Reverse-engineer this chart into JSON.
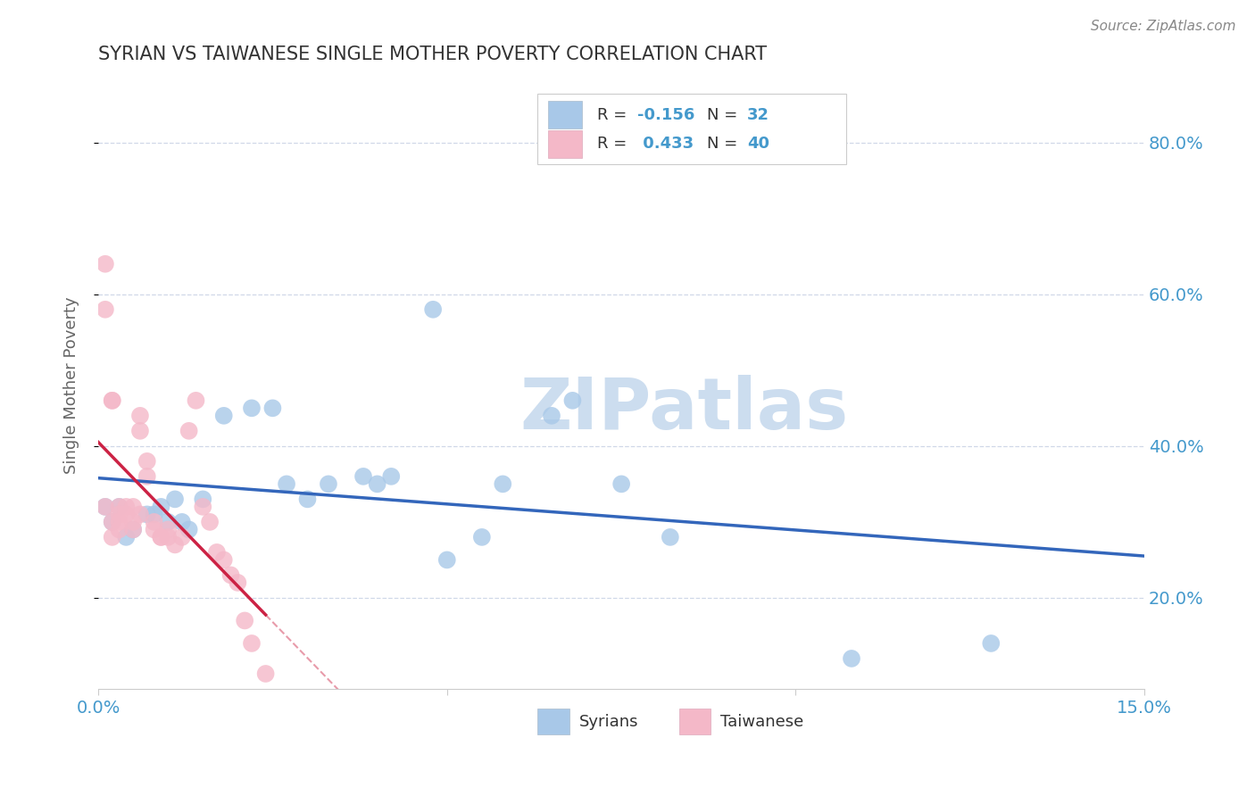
{
  "title": "SYRIAN VS TAIWANESE SINGLE MOTHER POVERTY CORRELATION CHART",
  "source_text": "Source: ZipAtlas.com",
  "ylabel": "Single Mother Poverty",
  "watermark": "ZIPatlas",
  "xlim": [
    0.0,
    0.15
  ],
  "ylim": [
    0.08,
    0.88
  ],
  "syrian_color": "#a8c8e8",
  "taiwanese_color": "#f4b8c8",
  "trend_syrian_color": "#3366bb",
  "trend_taiwanese_color": "#cc2244",
  "background_color": "#ffffff",
  "grid_color": "#d0d8e8",
  "title_color": "#333333",
  "axis_label_color": "#666666",
  "tick_label_color": "#4499cc",
  "syrians_x": [
    0.001,
    0.002,
    0.003,
    0.004,
    0.005,
    0.007,
    0.008,
    0.009,
    0.01,
    0.011,
    0.012,
    0.013,
    0.015,
    0.018,
    0.022,
    0.025,
    0.027,
    0.03,
    0.033,
    0.038,
    0.04,
    0.042,
    0.048,
    0.05,
    0.055,
    0.058,
    0.065,
    0.068,
    0.075,
    0.082,
    0.108,
    0.128
  ],
  "syrians_y": [
    0.32,
    0.3,
    0.32,
    0.28,
    0.29,
    0.31,
    0.31,
    0.32,
    0.3,
    0.33,
    0.3,
    0.29,
    0.33,
    0.44,
    0.45,
    0.45,
    0.35,
    0.33,
    0.35,
    0.36,
    0.35,
    0.36,
    0.58,
    0.25,
    0.28,
    0.35,
    0.44,
    0.46,
    0.35,
    0.28,
    0.12,
    0.14
  ],
  "taiwanese_x": [
    0.001,
    0.001,
    0.001,
    0.002,
    0.002,
    0.002,
    0.002,
    0.003,
    0.003,
    0.003,
    0.003,
    0.004,
    0.004,
    0.005,
    0.005,
    0.005,
    0.006,
    0.006,
    0.006,
    0.007,
    0.007,
    0.008,
    0.008,
    0.009,
    0.009,
    0.01,
    0.01,
    0.011,
    0.012,
    0.013,
    0.014,
    0.015,
    0.016,
    0.017,
    0.018,
    0.019,
    0.02,
    0.021,
    0.022,
    0.024
  ],
  "taiwanese_y": [
    0.64,
    0.58,
    0.32,
    0.46,
    0.46,
    0.3,
    0.28,
    0.32,
    0.3,
    0.31,
    0.29,
    0.32,
    0.31,
    0.32,
    0.3,
    0.29,
    0.42,
    0.44,
    0.31,
    0.38,
    0.36,
    0.3,
    0.29,
    0.28,
    0.28,
    0.29,
    0.28,
    0.27,
    0.28,
    0.42,
    0.46,
    0.32,
    0.3,
    0.26,
    0.25,
    0.23,
    0.22,
    0.17,
    0.14,
    0.1
  ]
}
